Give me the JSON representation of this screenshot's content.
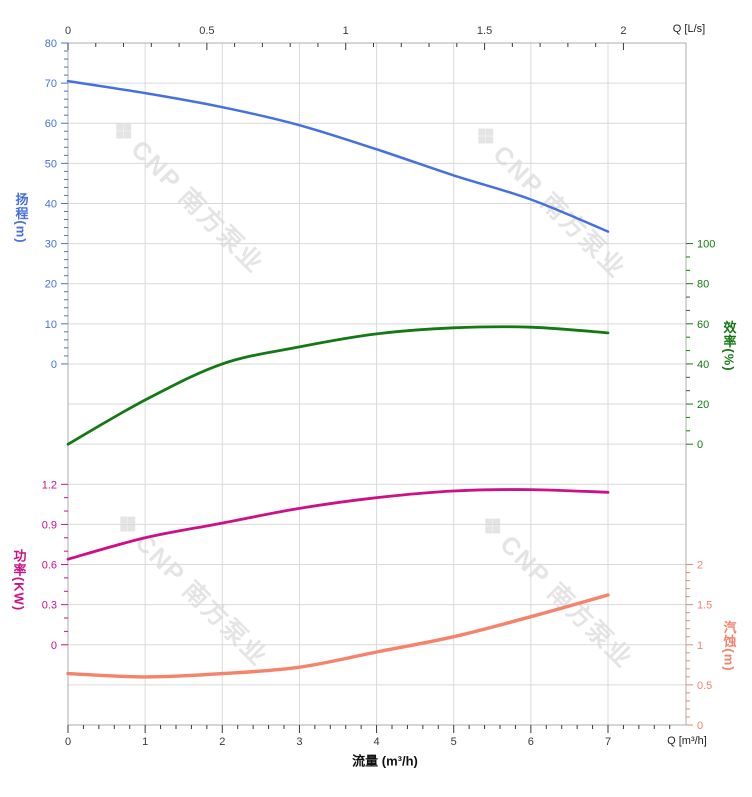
{
  "watermark": {
    "logo": "❖",
    "text": "CNP 南方泵业"
  },
  "labels": {
    "flow_axis_title": "流量 (m³/h)",
    "top_unit": "Q [L/s]",
    "bottom_unit": "Q [m³/h]",
    "head_title": "扬程(m)",
    "eff_title": "效率(%)",
    "power_title": "功率(KW)",
    "npsh_title": "汽蚀(m)"
  },
  "chart_data": {
    "type": "line",
    "title": "",
    "grid": true,
    "legend": "none",
    "xlabel": "流量 (m³/h)",
    "x_axis_bottom": {
      "unit_label": "Q [m³/h]",
      "range": [
        0,
        8
      ],
      "major_ticks": [
        0,
        1,
        2,
        3,
        4,
        5,
        6,
        7
      ],
      "minor_step": 0.2,
      "color": "#3a3a3a"
    },
    "x_axis_top": {
      "unit_label": "Q [L/s]",
      "range_lps": [
        0,
        2
      ],
      "major_ticks": [
        0,
        0.5,
        1,
        1.5,
        2
      ],
      "minor_step": 0.1,
      "lps_per_m3h": 0.27778,
      "color": "#3a3a3a"
    },
    "y_axes": [
      {
        "id": "head",
        "title": "扬程(m)",
        "side": "left",
        "color": "#4470E2",
        "range": [
          0,
          80
        ],
        "major_ticks": [
          0,
          10,
          20,
          30,
          40,
          50,
          60,
          70,
          80
        ],
        "minor_step": 2
      },
      {
        "id": "eff",
        "title": "效率(%)",
        "side": "right",
        "color": "#147814",
        "range": [
          0,
          100
        ],
        "major_ticks": [
          0,
          20,
          40,
          60,
          80,
          100
        ],
        "minor_step": 6.6667
      },
      {
        "id": "power",
        "title": "功率(KW)",
        "side": "left",
        "color": "#CC1187",
        "range": [
          0,
          1.2
        ],
        "major_ticks": [
          0,
          0.3,
          0.6,
          0.9,
          1.2
        ],
        "minor_step": 0.1
      },
      {
        "id": "npsh",
        "title": "汽蚀(m)",
        "side": "right",
        "color": "#F5826B",
        "range": [
          0,
          2
        ],
        "major_ticks": [
          0,
          0.5,
          1,
          1.5,
          2
        ],
        "minor_step": 0.1
      }
    ],
    "x": [
      0,
      1,
      2,
      3,
      4,
      5,
      6,
      7
    ],
    "series": [
      {
        "name": "扬程",
        "unit": "m",
        "axis": "head",
        "color": "#4470E2",
        "values": [
          70.5,
          67.5,
          64,
          59.5,
          53.5,
          47,
          41,
          33
        ]
      },
      {
        "name": "效率",
        "unit": "%",
        "axis": "eff",
        "color": "#147814",
        "values": [
          0,
          22,
          40,
          48.5,
          55,
          58,
          58.3,
          55.5
        ]
      },
      {
        "name": "功率",
        "unit": "KW",
        "axis": "power",
        "color": "#CC1187",
        "values": [
          0.64,
          0.8,
          0.91,
          1.02,
          1.1,
          1.15,
          1.16,
          1.14
        ]
      },
      {
        "name": "汽蚀",
        "unit": "m",
        "axis": "npsh",
        "color": "#F5826B",
        "values": [
          0.64,
          0.6,
          0.64,
          0.72,
          0.91,
          1.1,
          1.35,
          1.62
        ]
      }
    ],
    "grid_color": "#d9d9d9",
    "frame_color": "#aeaeae"
  }
}
